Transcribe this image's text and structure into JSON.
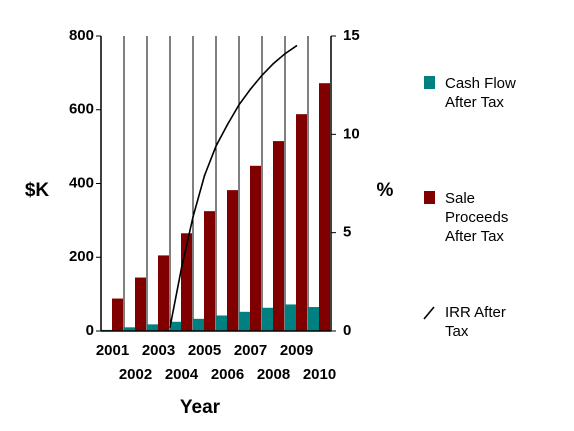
{
  "chart_data": {
    "type": "bar",
    "categories": [
      "2001",
      "2002",
      "2003",
      "2004",
      "2005",
      "2006",
      "2007",
      "2008",
      "2009",
      "2010"
    ],
    "series": [
      {
        "name": "Cash Flow After Tax",
        "name_lines": [
          "Cash Flow",
          "After Tax"
        ],
        "axis": "left",
        "kind": "bar",
        "color": "#008080",
        "values": [
          3,
          10,
          18,
          25,
          33,
          42,
          52,
          63,
          72,
          65
        ]
      },
      {
        "name": "Sale Proceeds After Tax",
        "name_lines": [
          "Sale",
          "Proceeds",
          "After Tax"
        ],
        "axis": "left",
        "kind": "bar",
        "color": "#800000",
        "values": [
          88,
          145,
          205,
          265,
          325,
          382,
          448,
          515,
          588,
          672
        ]
      },
      {
        "name": "IRR After Tax",
        "name_lines": [
          "IRR After",
          "Tax"
        ],
        "axis": "right",
        "kind": "line",
        "color": "#000000",
        "points": [
          {
            "x": 2004.0,
            "y": 0.2
          },
          {
            "x": 2004.5,
            "y": 3.2
          },
          {
            "x": 2005.0,
            "y": 5.8
          },
          {
            "x": 2005.5,
            "y": 7.9
          },
          {
            "x": 2006.0,
            "y": 9.4
          },
          {
            "x": 2006.5,
            "y": 10.5
          },
          {
            "x": 2007.0,
            "y": 11.5
          },
          {
            "x": 2007.5,
            "y": 12.3
          },
          {
            "x": 2008.0,
            "y": 13.0
          },
          {
            "x": 2008.5,
            "y": 13.6
          },
          {
            "x": 2009.0,
            "y": 14.1
          },
          {
            "x": 2009.5,
            "y": 14.5
          }
        ]
      }
    ],
    "xlabel": "Year",
    "ylabel": "$K",
    "y2label": "%",
    "ylim": [
      0,
      800
    ],
    "yticks": [
      "0",
      "200",
      "400",
      "600",
      "800"
    ],
    "y2lim": [
      0,
      15
    ],
    "y2ticks": [
      "0",
      "5",
      "10",
      "15"
    ],
    "grid": "vertical",
    "legend": "right"
  }
}
